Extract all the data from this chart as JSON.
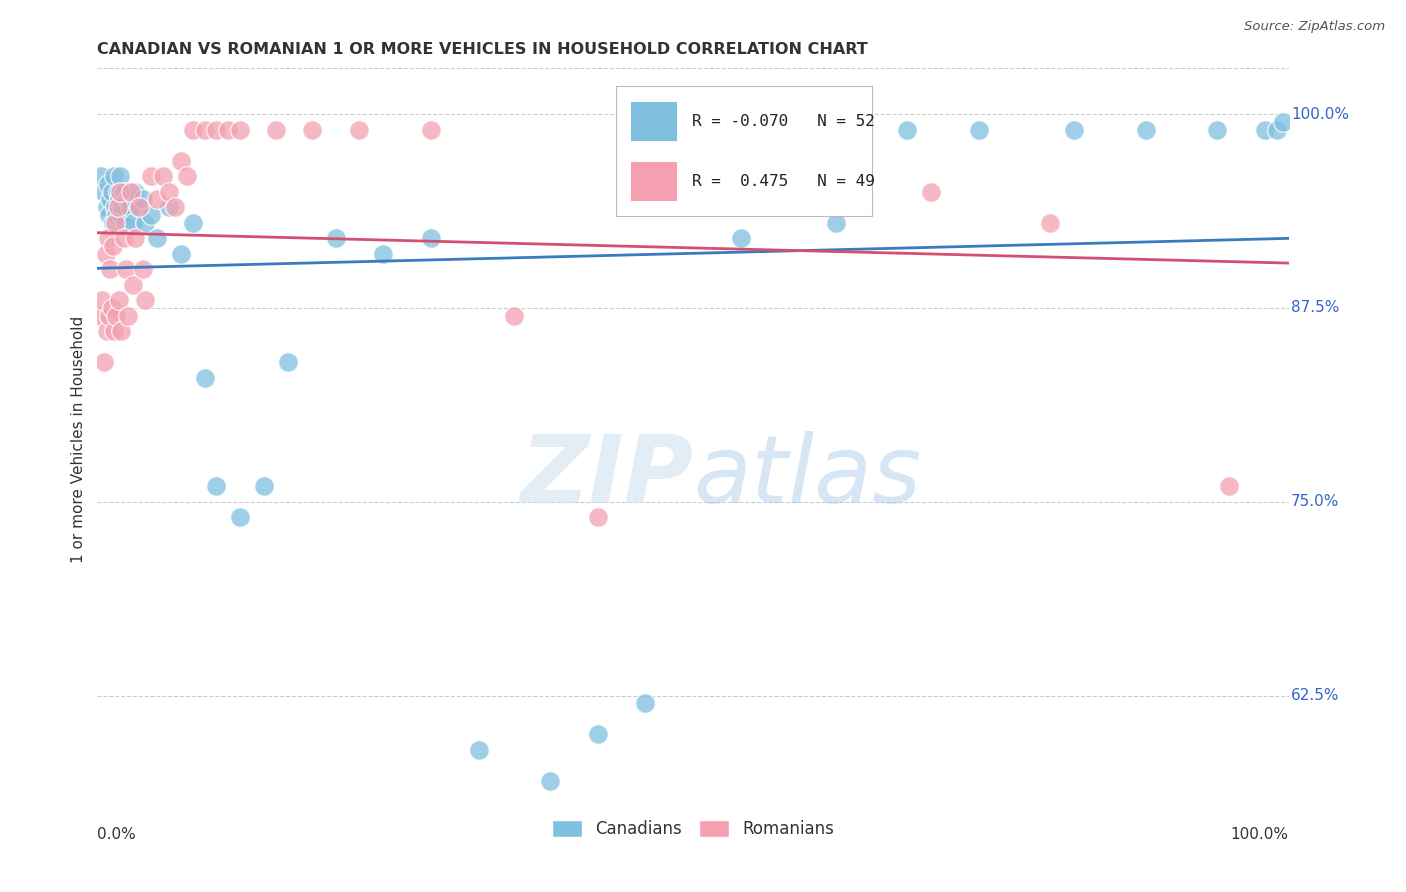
{
  "title": "CANADIAN VS ROMANIAN 1 OR MORE VEHICLES IN HOUSEHOLD CORRELATION CHART",
  "source": "Source: ZipAtlas.com",
  "ylabel": "1 or more Vehicles in Household",
  "xlim": [
    0.0,
    1.0
  ],
  "ylim": [
    0.55,
    1.03
  ],
  "yticks": [
    0.625,
    0.75,
    0.875,
    1.0
  ],
  "ytick_labels": [
    "62.5%",
    "75.0%",
    "87.5%",
    "100.0%"
  ],
  "canadian_color": "#7fbfdf",
  "romanian_color": "#f4a0b0",
  "canadian_line_color": "#3a7abf",
  "romanian_line_color": "#d45070",
  "R_canadian": -0.07,
  "N_canadian": 52,
  "R_romanian": 0.475,
  "N_romanian": 49,
  "legend_label_canadian": "Canadians",
  "legend_label_romanian": "Romanians",
  "canadian_x": [
    0.003,
    0.006,
    0.008,
    0.009,
    0.01,
    0.011,
    0.012,
    0.013,
    0.014,
    0.015,
    0.016,
    0.017,
    0.018,
    0.019,
    0.02,
    0.021,
    0.022,
    0.023,
    0.025,
    0.027,
    0.03,
    0.032,
    0.035,
    0.038,
    0.04,
    0.045,
    0.05,
    0.06,
    0.07,
    0.08,
    0.09,
    0.1,
    0.12,
    0.14,
    0.16,
    0.2,
    0.24,
    0.28,
    0.32,
    0.38,
    0.42,
    0.46,
    0.54,
    0.62,
    0.68,
    0.74,
    0.82,
    0.88,
    0.94,
    0.98,
    0.99,
    0.995
  ],
  "canadian_y": [
    0.96,
    0.95,
    0.94,
    0.955,
    0.935,
    0.945,
    0.95,
    0.93,
    0.96,
    0.94,
    0.935,
    0.95,
    0.945,
    0.96,
    0.935,
    0.94,
    0.95,
    0.93,
    0.945,
    0.94,
    0.93,
    0.95,
    0.94,
    0.945,
    0.93,
    0.935,
    0.92,
    0.94,
    0.91,
    0.93,
    0.83,
    0.76,
    0.74,
    0.76,
    0.84,
    0.92,
    0.91,
    0.92,
    0.59,
    0.57,
    0.6,
    0.62,
    0.92,
    0.93,
    0.99,
    0.99,
    0.99,
    0.99,
    0.99,
    0.99,
    0.99,
    0.995
  ],
  "romanian_x": [
    0.002,
    0.004,
    0.006,
    0.007,
    0.008,
    0.009,
    0.01,
    0.011,
    0.012,
    0.013,
    0.014,
    0.015,
    0.016,
    0.017,
    0.018,
    0.019,
    0.02,
    0.022,
    0.024,
    0.026,
    0.028,
    0.03,
    0.032,
    0.035,
    0.038,
    0.04,
    0.045,
    0.05,
    0.055,
    0.06,
    0.065,
    0.07,
    0.075,
    0.08,
    0.09,
    0.1,
    0.11,
    0.12,
    0.15,
    0.18,
    0.22,
    0.28,
    0.35,
    0.42,
    0.5,
    0.6,
    0.7,
    0.8,
    0.95
  ],
  "romanian_y": [
    0.87,
    0.88,
    0.84,
    0.91,
    0.86,
    0.92,
    0.87,
    0.9,
    0.875,
    0.915,
    0.86,
    0.93,
    0.87,
    0.94,
    0.88,
    0.95,
    0.86,
    0.92,
    0.9,
    0.87,
    0.95,
    0.89,
    0.92,
    0.94,
    0.9,
    0.88,
    0.96,
    0.945,
    0.96,
    0.95,
    0.94,
    0.97,
    0.96,
    0.99,
    0.99,
    0.99,
    0.99,
    0.99,
    0.99,
    0.99,
    0.99,
    0.99,
    0.87,
    0.74,
    0.99,
    0.99,
    0.95,
    0.93,
    0.76
  ]
}
